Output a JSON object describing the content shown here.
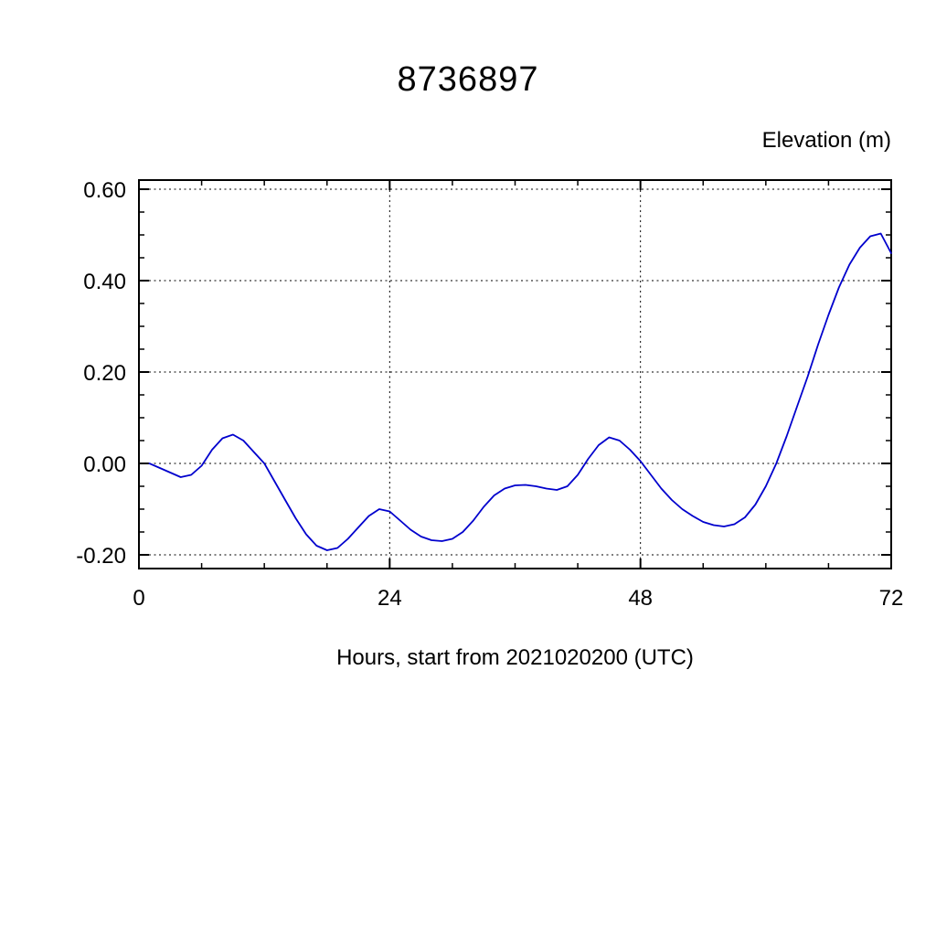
{
  "chart": {
    "title": "8736897",
    "ylabel": "Elevation (m)",
    "xlabel": "Hours, start from 2021020200 (UTC)"
  },
  "chart_data": {
    "type": "line",
    "title": "8736897",
    "xlabel": "Hours, start from 2021020200 (UTC)",
    "ylabel": "Elevation (m)",
    "xlim": [
      0,
      72
    ],
    "ylim": [
      -0.23,
      0.62
    ],
    "xticks": [
      0,
      24,
      48,
      72
    ],
    "xticklabels": [
      "0",
      "24",
      "48",
      "72"
    ],
    "yticks": [
      -0.2,
      0.0,
      0.2,
      0.4,
      0.6
    ],
    "yticklabels": [
      "-0.20",
      "0.00",
      "0.20",
      "0.40",
      "0.60"
    ],
    "grid": true,
    "grid_style": "dashed",
    "legend": "none",
    "line_color": "#0000cd",
    "frame_color": "#000000",
    "series": [
      {
        "name": "elevation",
        "x": [
          1,
          2,
          3,
          4,
          5,
          6,
          7,
          8,
          9,
          10,
          11,
          12,
          13,
          14,
          15,
          16,
          17,
          18,
          19,
          20,
          21,
          22,
          23,
          24,
          25,
          26,
          27,
          28,
          29,
          30,
          31,
          32,
          33,
          34,
          35,
          36,
          37,
          38,
          39,
          40,
          41,
          42,
          43,
          44,
          45,
          46,
          47,
          48,
          49,
          50,
          51,
          52,
          53,
          54,
          55,
          56,
          57,
          58,
          59,
          60,
          61,
          62,
          63,
          64,
          65,
          66,
          67,
          68,
          69,
          70,
          71,
          72
        ],
        "y": [
          0.0,
          -0.01,
          -0.02,
          -0.03,
          -0.025,
          -0.005,
          0.03,
          0.055,
          0.063,
          0.05,
          0.025,
          0.0,
          -0.04,
          -0.08,
          -0.12,
          -0.155,
          -0.18,
          -0.19,
          -0.185,
          -0.165,
          -0.14,
          -0.115,
          -0.1,
          -0.105,
          -0.125,
          -0.145,
          -0.16,
          -0.168,
          -0.17,
          -0.165,
          -0.15,
          -0.125,
          -0.095,
          -0.07,
          -0.055,
          -0.048,
          -0.047,
          -0.05,
          -0.055,
          -0.058,
          -0.05,
          -0.025,
          0.01,
          0.04,
          0.057,
          0.05,
          0.03,
          0.005,
          -0.025,
          -0.055,
          -0.08,
          -0.1,
          -0.115,
          -0.128,
          -0.135,
          -0.138,
          -0.133,
          -0.118,
          -0.09,
          -0.05,
          0.0,
          0.06,
          0.125,
          0.19,
          0.26,
          0.325,
          0.385,
          0.435,
          0.472,
          0.497,
          0.503,
          0.46
        ]
      }
    ]
  }
}
